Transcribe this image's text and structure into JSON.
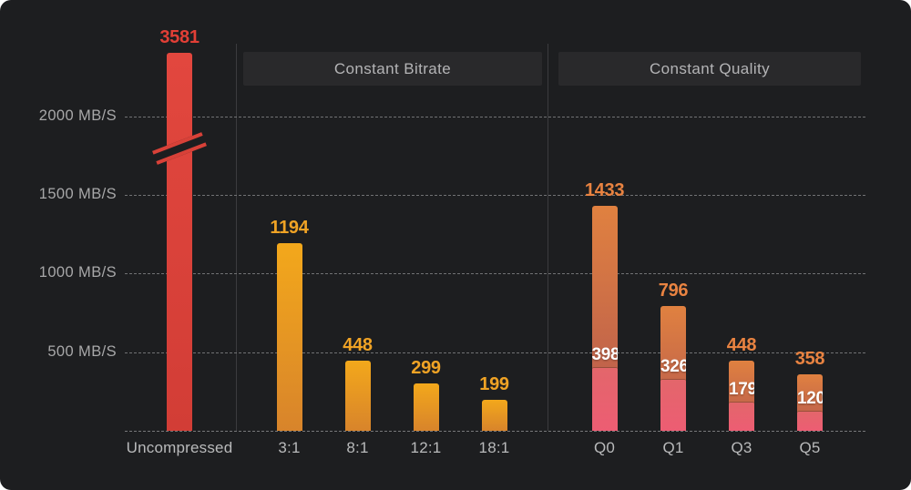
{
  "colors": {
    "background": "#1d1e20",
    "grid_line": "#808183",
    "tick_text": "#a8a8a9",
    "axis_label_text": "#b9babb",
    "header_bg": "#29292b",
    "header_text": "#b4b4b6",
    "red_bar": "#d7423a",
    "red_value_label": "#e23f36",
    "cbr_bar_top": "#f3a81b",
    "cbr_bar_bottom": "#d8842b",
    "cbr_value_label": "#f0a325",
    "cq_bar_top": "#e08140",
    "cq_bar_mid": "#b5584f",
    "cq_pink_segment": "#ea5f70",
    "cq_value_label": "#e98341",
    "inner_value_label": "#ffffff"
  },
  "chart_data": {
    "type": "bar",
    "unit": "MB/S",
    "title": "",
    "yticks": [
      {
        "value": 2000,
        "label": "2000 MB/S"
      },
      {
        "value": 1500,
        "label": "1500 MB/S"
      },
      {
        "value": 1000,
        "label": "1000 MB/S"
      },
      {
        "value": 500,
        "label": "500 MB/S"
      }
    ],
    "ylim": [
      0,
      2400
    ],
    "grid": "horizontal dashed",
    "legend": "none",
    "axis_break": {
      "present": true,
      "on_bar": "Uncompressed",
      "note": "tallest bar is visually truncated with a diagonal break mark"
    },
    "groups": [
      {
        "name": "",
        "style": "red",
        "bars": [
          {
            "label": "Uncompressed",
            "value": 3581,
            "truncated": true
          }
        ]
      },
      {
        "name": "Constant Bitrate",
        "style": "orange",
        "bars": [
          {
            "label": "3:1",
            "value": 1194
          },
          {
            "label": "8:1",
            "value": 448
          },
          {
            "label": "12:1",
            "value": 299
          },
          {
            "label": "18:1",
            "value": 199
          }
        ]
      },
      {
        "name": "Constant Quality",
        "style": "orange-pink",
        "bars": [
          {
            "label": "Q0",
            "value": 1433,
            "inner_value": 398
          },
          {
            "label": "Q1",
            "value": 796,
            "inner_value": 326
          },
          {
            "label": "Q3",
            "value": 448,
            "inner_value": 179
          },
          {
            "label": "Q5",
            "value": 358,
            "inner_value": 120
          }
        ]
      }
    ]
  }
}
